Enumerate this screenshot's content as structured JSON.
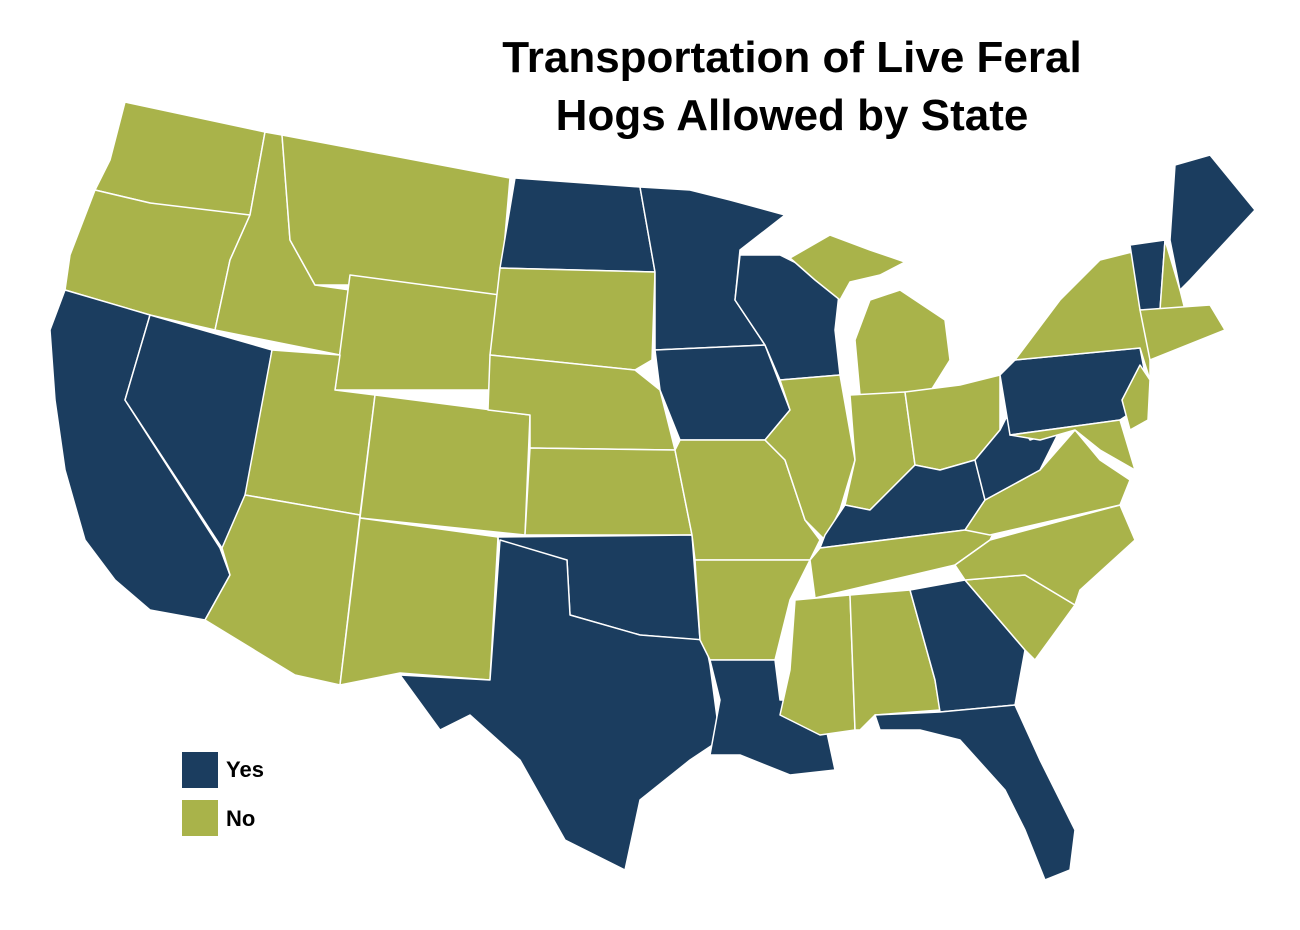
{
  "header": {
    "title_lines": [
      "Transportation of Live Feral",
      "Hogs Allowed by State"
    ]
  },
  "legend": {
    "items": [
      {
        "label": "Yes",
        "color": "#1b3d5f"
      },
      {
        "label": "No",
        "color": "#a9b34a"
      }
    ]
  }
}
